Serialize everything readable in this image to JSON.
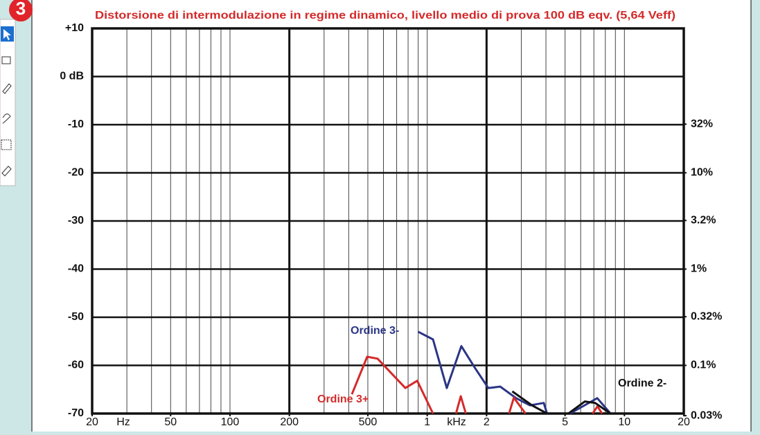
{
  "badge": "3",
  "chart_data": {
    "type": "line",
    "title": "Distorsione di intermodulazione in regime dinamico, livello medio di prova 100 dB eqv. (5,64 Veff)",
    "x_unit_left": "Hz",
    "x_unit_right": "kHz",
    "xlog": true,
    "xlim": [
      20,
      20000
    ],
    "xticks": [
      20,
      50,
      100,
      200,
      500,
      {
        "value": 1000,
        "label": "1"
      },
      {
        "value": 2000,
        "label": "2"
      },
      {
        "value": 5000,
        "label": "5"
      },
      {
        "value": 10000,
        "label": "10"
      },
      {
        "value": 20000,
        "label": "20"
      }
    ],
    "x_major_grid": [
      200,
      2000
    ],
    "ylim": [
      -70,
      10
    ],
    "yticks": [
      {
        "value": 10,
        "label": "+10"
      },
      {
        "value": 0,
        "label": "0 dB"
      },
      -10,
      -20,
      -30,
      -40,
      -50,
      -60,
      -70
    ],
    "y2log": true,
    "y2lim": [
      0.0316,
      316.2
    ],
    "y2ticks": [
      {
        "value": 32,
        "label": "32%"
      },
      {
        "value": 10,
        "label": "10%"
      },
      {
        "value": 3.2,
        "label": "3.2%"
      },
      {
        "value": 1,
        "label": "1%"
      },
      {
        "value": 0.32,
        "label": "0.32%"
      },
      {
        "value": 0.1,
        "label": "0.1%"
      },
      {
        "value": 0.03,
        "label": "0.03%"
      }
    ],
    "grid": true,
    "series": [
      {
        "name": "Ordine 3-",
        "color": "#2b3585",
        "x": [
          900,
          1070,
          1257,
          1490,
          1738,
          2040,
          2345,
          2825,
          3320,
          3900,
          4050,
          null,
          5300,
          7280,
          8500
        ],
        "values": [
          -53,
          -54.6,
          -64.7,
          -56,
          -60.4,
          -64.7,
          -64.4,
          -66.8,
          -68.3,
          -67.8,
          -70,
          null,
          -70,
          -66.8,
          -70
        ]
      },
      {
        "name": "Ordine 3+",
        "color": "#d42a2a",
        "x": [
          415,
          496,
          560,
          775,
          890,
          1070,
          null,
          1400,
          1480,
          1570,
          null,
          2600,
          2750,
          3150,
          null,
          6900,
          7300,
          7700
        ],
        "values": [
          -66,
          -58.2,
          -58.6,
          -64.7,
          -63.2,
          -70,
          null,
          -70,
          -66.4,
          -70,
          null,
          -70,
          -66.7,
          -70,
          null,
          -70,
          -68.5,
          -70
        ]
      },
      {
        "name": "Ordine 2-",
        "color": "#111111",
        "x": [
          2700,
          3400,
          4050,
          null,
          5200,
          6300,
          7100,
          8500
        ],
        "values": [
          -65.4,
          -68.3,
          -70,
          null,
          -70,
          -67.5,
          -67.8,
          -70
        ]
      }
    ]
  }
}
